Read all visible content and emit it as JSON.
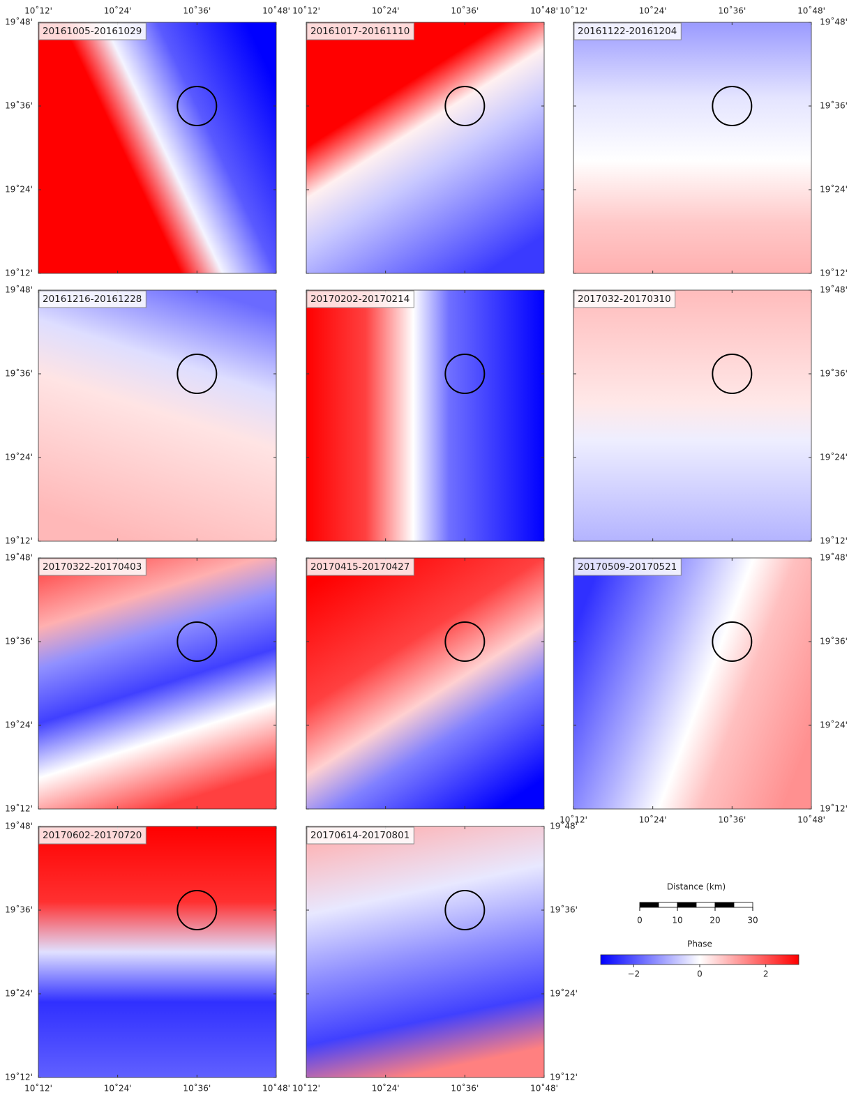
{
  "maps": {
    "panels": [
      {
        "label": "20161005-20161029"
      },
      {
        "label": "20161017-20161110"
      },
      {
        "label": "20161122-20161204"
      },
      {
        "label": "20161216-20161228"
      },
      {
        "label": "20170202-20170214"
      },
      {
        "label": "2017032-20170310"
      },
      {
        "label": "20170322-20170403"
      },
      {
        "label": "20170415-20170427"
      },
      {
        "label": "20170509-20170521"
      },
      {
        "label": "20170602-20170720"
      },
      {
        "label": "20170614-20170801"
      }
    ],
    "lonlim": [
      10.2,
      10.8
    ],
    "latlim": [
      19.2,
      19.8
    ],
    "lon_ticks": [
      {
        "value": 10.2,
        "label": "10˚12'"
      },
      {
        "value": 10.4,
        "label": "10˚24'"
      },
      {
        "value": 10.6,
        "label": "10˚36'"
      },
      {
        "value": 10.8,
        "label": "10˚48'"
      }
    ],
    "lat_ticks": [
      {
        "value": 19.2,
        "label": "19˚12'"
      },
      {
        "value": 19.4,
        "label": "19˚24'"
      },
      {
        "value": 19.6,
        "label": "19˚36'"
      },
      {
        "value": 19.8,
        "label": "19˚48'"
      }
    ],
    "circle": {
      "lon": 10.6,
      "lat": 19.6
    }
  },
  "scale_bar": {
    "title": "Distance (km)",
    "xlim": [
      0,
      30
    ],
    "ticks": [
      0,
      10,
      20,
      30
    ]
  },
  "colorbar": {
    "title": "Phase",
    "lim": [
      -3,
      3
    ],
    "ticks": [
      {
        "value": -2,
        "label": "−2"
      },
      0,
      2
    ],
    "colors": [
      "#0000ff",
      "#ffffff",
      "#ff0000"
    ]
  }
}
